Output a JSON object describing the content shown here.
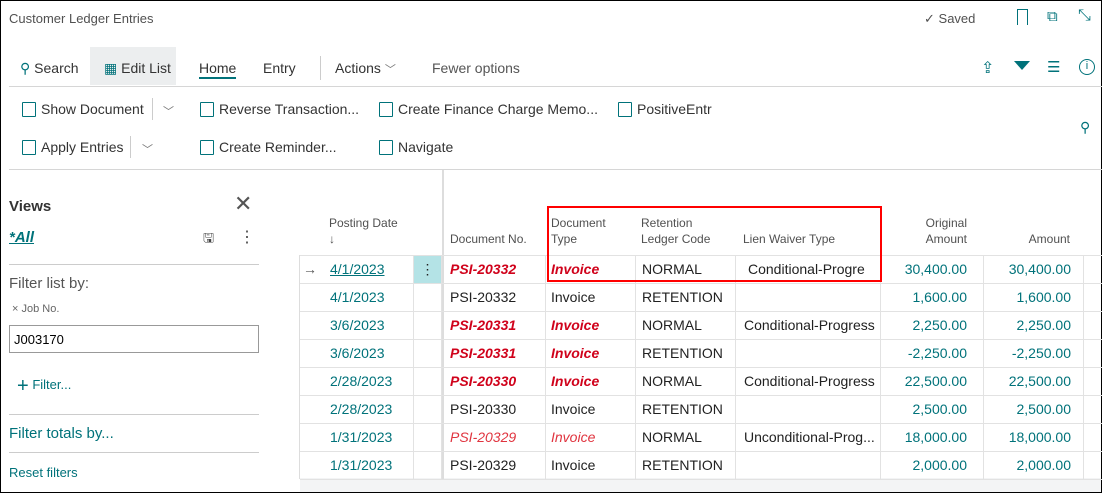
{
  "window": {
    "title": "Customer Ledger Entries",
    "saved_label": "Saved"
  },
  "tabs": {
    "search": "Search",
    "edit_list": "Edit List",
    "home": "Home",
    "entry": "Entry",
    "actions": "Actions",
    "fewer": "Fewer options"
  },
  "actions": {
    "show_document": "Show Document",
    "reverse": "Reverse Transaction...",
    "finance_charge": "Create Finance Charge Memo...",
    "positive": "PositiveEntr",
    "apply": "Apply Entries",
    "reminder": "Create Reminder...",
    "navigate": "Navigate"
  },
  "views": {
    "title": "Views",
    "current": "*All",
    "filter_list_by": "Filter list by:",
    "filter_field": "Job No.",
    "filter_value": "J003170",
    "add_filter": "Filter...",
    "filter_totals": "Filter totals by...",
    "reset": "Reset filters"
  },
  "table": {
    "headers": {
      "posting_date": "Posting Date",
      "sort_arrow": "↓",
      "document_no": "Document No.",
      "doc_type_1": "Document",
      "doc_type_2": "Type",
      "ret_1": "Retention",
      "ret_2": "Ledger Code",
      "lien": "Lien Waiver Type",
      "orig_1": "Original",
      "orig_2": "Amount",
      "amount": "Amount"
    },
    "rows": [
      {
        "date": "4/1/2023",
        "doc_no": "PSI-20332",
        "type": "Invoice",
        "code": "NORMAL",
        "lien": "Conditional-Progre",
        "orig": "30,400.00",
        "amount": "30,400.00",
        "style": "hl"
      },
      {
        "date": "4/1/2023",
        "doc_no": "PSI-20332",
        "type": "Invoice",
        "code": "RETENTION",
        "lien": "",
        "orig": "1,600.00",
        "amount": "1,600.00",
        "style": ""
      },
      {
        "date": "3/6/2023",
        "doc_no": "PSI-20331",
        "type": "Invoice",
        "code": "NORMAL",
        "lien": "Conditional-Progress",
        "orig": "2,250.00",
        "amount": "2,250.00",
        "style": "hl"
      },
      {
        "date": "3/6/2023",
        "doc_no": "PSI-20331",
        "type": "Invoice",
        "code": "RETENTION",
        "lien": "",
        "orig": "-2,250.00",
        "amount": "-2,250.00",
        "style": "hl"
      },
      {
        "date": "2/28/2023",
        "doc_no": "PSI-20330",
        "type": "Invoice",
        "code": "NORMAL",
        "lien": "Conditional-Progress",
        "orig": "22,500.00",
        "amount": "22,500.00",
        "style": "hl"
      },
      {
        "date": "2/28/2023",
        "doc_no": "PSI-20330",
        "type": "Invoice",
        "code": "RETENTION",
        "lien": "",
        "orig": "2,500.00",
        "amount": "2,500.00",
        "style": ""
      },
      {
        "date": "1/31/2023",
        "doc_no": "PSI-20329",
        "type": "Invoice",
        "code": "NORMAL",
        "lien": "Unconditional-Prog...",
        "orig": "18,000.00",
        "amount": "18,000.00",
        "style": "hl2"
      },
      {
        "date": "1/31/2023",
        "doc_no": "PSI-20329",
        "type": "Invoice",
        "code": "RETENTION",
        "lien": "",
        "orig": "2,000.00",
        "amount": "2,000.00",
        "style": ""
      }
    ]
  },
  "colors": {
    "accent": "#00727a",
    "highlight": "#d0021b",
    "box": "#ff0000"
  }
}
